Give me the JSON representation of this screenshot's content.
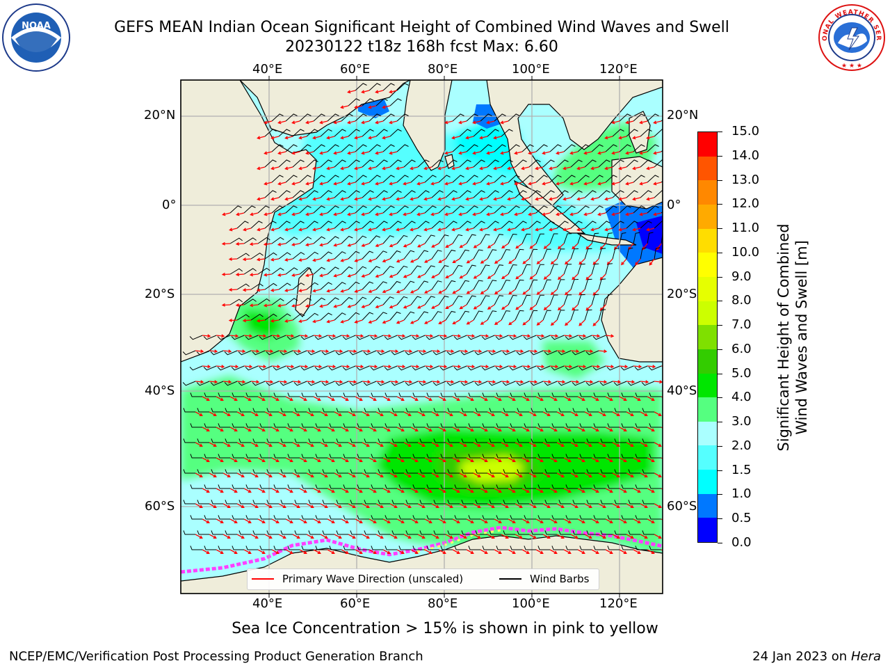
{
  "title_line1": "GEFS MEAN Indian Ocean Significant Height of Combined Wind Waves and Swell",
  "title_line2": "20230122 t18z 168h fcst   Max: 6.60",
  "top_lon_labels": [
    "40°E",
    "60°E",
    "80°E",
    "100°E",
    "120°E"
  ],
  "bottom_lon_labels": [
    "40°E",
    "60°E",
    "80°E",
    "100°E",
    "120°E"
  ],
  "left_lat_labels": [
    "20°N",
    "0°",
    "20°S",
    "40°S",
    "60°S"
  ],
  "right_lat_labels": [
    "20°N",
    "0°",
    "20°S",
    "40°S",
    "60°S"
  ],
  "colorbar": {
    "ticks": [
      "0.0",
      "0.5",
      "1.0",
      "1.5",
      "2.0",
      "3.0",
      "4.0",
      "5.0",
      "6.0",
      "7.0",
      "8.0",
      "9.0",
      "10.0",
      "11.0",
      "12.0",
      "13.0",
      "14.0",
      "15.0"
    ],
    "colors": [
      "#0000ff",
      "#0078ff",
      "#00ffff",
      "#55ffff",
      "#aaffff",
      "#55ff80",
      "#00e600",
      "#33cc00",
      "#7fe000",
      "#ccff00",
      "#e6ff00",
      "#ffff00",
      "#ffdd00",
      "#ffaa00",
      "#ff8800",
      "#ff5500",
      "#ff0000"
    ],
    "label_line1": "Significant Height of Combined",
    "label_line2": "Wind Waves and Swell [m]"
  },
  "legend": {
    "wave_direction": "Primary Wave Direction (unscaled)",
    "wind_barbs": "Wind Barbs",
    "wave_color": "#ff0000",
    "barb_color": "#000000"
  },
  "caption": "Sea Ice Concentration > 15% is shown in pink to yellow",
  "footer_left": "NCEP/EMC/Verification Post Processing Product Generation Branch",
  "footer_right_prefix": "24 Jan 2023 on ",
  "footer_right_host": "Hera",
  "logos": {
    "noaa_text": "NOAA",
    "nws_text": "NATIONAL WEATHER SERVICE"
  },
  "map": {
    "land_color": "#efedda",
    "ocean_base_color": "#aaffff",
    "grid_color": "#b0b0b0"
  }
}
